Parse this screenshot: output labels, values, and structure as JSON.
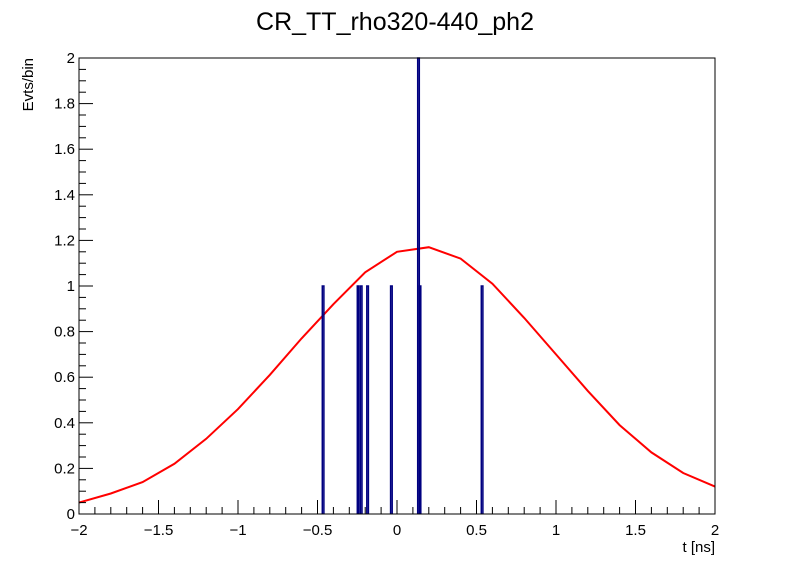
{
  "chart_data": {
    "type": "bar",
    "title": "CR_TT_rho320-440_ph2",
    "xlabel": "t [ns]",
    "ylabel": "Evts/bin",
    "xlim": [
      -2,
      2
    ],
    "ylim": [
      0,
      2
    ],
    "grid": false,
    "x_tick_labels": [
      "−2",
      "−1.5",
      "−1",
      "−0.5",
      "0",
      "0.5",
      "1",
      "1.5",
      "2"
    ],
    "y_tick_labels": [
      "0",
      "0.2",
      "0.4",
      "0.6",
      "0.8",
      "1",
      "1.2",
      "1.4",
      "1.6",
      "1.8",
      "2"
    ],
    "colors": {
      "histogram": "#000080",
      "fit": "#ff0000",
      "frame": "#000000"
    },
    "histogram": {
      "bin_width": 0.01,
      "bins": [
        {
          "x": -0.465,
          "count": 1
        },
        {
          "x": -0.245,
          "count": 1
        },
        {
          "x": -0.225,
          "count": 1
        },
        {
          "x": -0.185,
          "count": 1
        },
        {
          "x": -0.035,
          "count": 1
        },
        {
          "x": 0.135,
          "count": 2
        },
        {
          "x": 0.145,
          "count": 1
        },
        {
          "x": 0.535,
          "count": 1
        }
      ]
    },
    "fit": {
      "type": "gaussian",
      "x": [
        -2.0,
        -1.8,
        -1.6,
        -1.4,
        -1.2,
        -1.0,
        -0.8,
        -0.6,
        -0.4,
        -0.2,
        0.0,
        0.2,
        0.4,
        0.6,
        0.8,
        1.0,
        1.2,
        1.4,
        1.6,
        1.8,
        2.0
      ],
      "y": [
        0.05,
        0.09,
        0.14,
        0.22,
        0.33,
        0.46,
        0.61,
        0.77,
        0.92,
        1.06,
        1.15,
        1.17,
        1.12,
        1.01,
        0.86,
        0.7,
        0.54,
        0.39,
        0.27,
        0.18,
        0.12
      ]
    }
  }
}
